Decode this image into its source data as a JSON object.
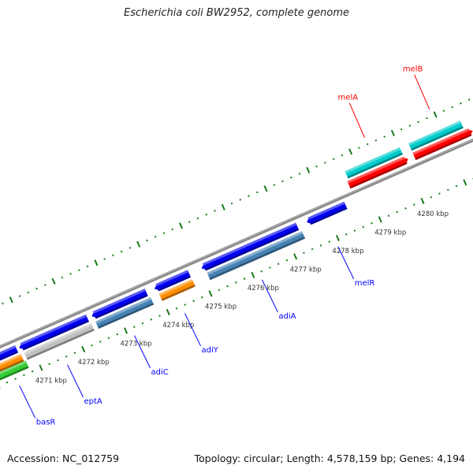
{
  "title": "Escherichia coli BW2952, complete genome",
  "footer": {
    "accession": "Accession: NC_012759",
    "topology": "Topology: circular; Length: 4,578,159 bp; Genes: 4,194"
  },
  "colors": {
    "backbone": "#8a8a8a",
    "ticks": "#1a7a1a",
    "forward_label": "#ff0000",
    "reverse_label": "#0000ff"
  },
  "map": {
    "view_kbp": [
      4270.0,
      4282.0
    ],
    "tick_labels": [
      "4271 kbp",
      "4272 kbp",
      "4273 kbp",
      "4274 kbp",
      "4275 kbp",
      "4276 kbp",
      "4277 kbp",
      "4278 kbp",
      "4279 kbp",
      "4280 kbp"
    ],
    "tick_values_kbp": [
      4271,
      4272,
      4273,
      4274,
      4275,
      4276,
      4277,
      4278,
      4279,
      4280
    ],
    "features": [
      {
        "start": 4269.5,
        "end": 4270.68,
        "lane": 1,
        "strand": -1,
        "color": "#0000ee"
      },
      {
        "start": 4270.74,
        "end": 4272.35,
        "lane": 1,
        "strand": -1,
        "color": "#0000ee"
      },
      {
        "start": 4272.45,
        "end": 4273.74,
        "lane": 1,
        "strand": -1,
        "color": "#0000ee"
      },
      {
        "start": 4273.93,
        "end": 4274.75,
        "lane": 1,
        "strand": -1,
        "color": "#0000ee"
      },
      {
        "start": 4275.04,
        "end": 4277.3,
        "lane": 1,
        "strand": -1,
        "color": "#0000ee"
      },
      {
        "start": 4277.52,
        "end": 4278.44,
        "lane": 1,
        "strand": -1,
        "color": "#0000ee"
      },
      {
        "start": 4269.5,
        "end": 4270.72,
        "lane": 2,
        "strand": 0,
        "color": "#ff8c00"
      },
      {
        "start": 4269.5,
        "end": 4270.76,
        "lane": 3,
        "strand": 0,
        "color": "#33cc33"
      },
      {
        "start": 4270.8,
        "end": 4272.38,
        "lane": 2,
        "strand": 0,
        "color": "#c0c0c0"
      },
      {
        "start": 4272.48,
        "end": 4273.78,
        "lane": 2,
        "strand": 0,
        "color": "#4682b4"
      },
      {
        "start": 4273.98,
        "end": 4274.76,
        "lane": 2,
        "strand": 0,
        "color": "#ff8c00"
      },
      {
        "start": 4275.11,
        "end": 4277.35,
        "lane": 2,
        "strand": 0,
        "color": "#4682b4"
      },
      {
        "start": 4278.68,
        "end": 4280.08,
        "lane": -1,
        "strand": 1,
        "color": "#ff0000"
      },
      {
        "start": 4280.22,
        "end": 4281.6,
        "lane": -1,
        "strand": 1,
        "color": "#ff0000"
      },
      {
        "start": 4278.72,
        "end": 4280.01,
        "lane": -2,
        "strand": 0,
        "color": "#00cccc"
      },
      {
        "start": 4280.22,
        "end": 4281.44,
        "lane": -2,
        "strand": 0,
        "color": "#00cccc"
      }
    ],
    "gene_labels": [
      {
        "name": "basR",
        "at_kbp": 4270.42,
        "side": "inner"
      },
      {
        "name": "eptA",
        "at_kbp": 4271.55,
        "side": "inner"
      },
      {
        "name": "adiC",
        "at_kbp": 4273.13,
        "side": "inner"
      },
      {
        "name": "adiY",
        "at_kbp": 4274.32,
        "side": "inner"
      },
      {
        "name": "adiA",
        "at_kbp": 4276.14,
        "side": "inner"
      },
      {
        "name": "melR",
        "at_kbp": 4277.93,
        "side": "inner"
      },
      {
        "name": "melA",
        "at_kbp": 4279.4,
        "side": "outer"
      },
      {
        "name": "melB",
        "at_kbp": 4280.93,
        "side": "outer"
      }
    ]
  }
}
